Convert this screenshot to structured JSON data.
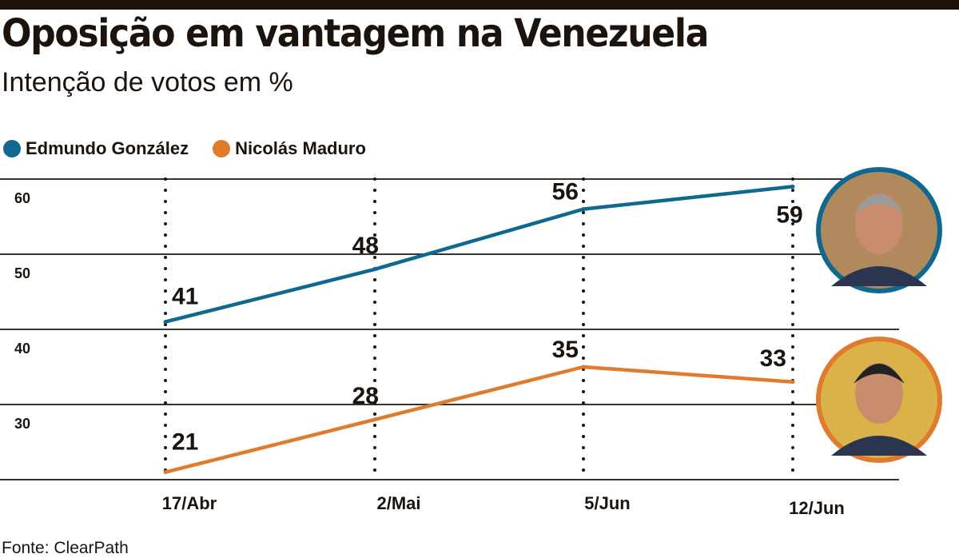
{
  "title": "Oposição em vantagem na Venezuela",
  "subtitle": "Intenção de votos em %",
  "source": "Fonte: ClearPath",
  "colors": {
    "gonzalez": "#0f6890",
    "maduro": "#e07b2e"
  },
  "chart_data": {
    "type": "line",
    "title": "Oposição em vantagem na Venezuela",
    "subtitle": "Intenção de votos em %",
    "categories": [
      "17/Abr",
      "2/Mai",
      "5/Jun",
      "12/Jun"
    ],
    "ylim": [
      20,
      60
    ],
    "yticks": [
      60,
      50,
      40,
      30
    ],
    "grid": true,
    "legend_position": "top-left",
    "series": [
      {
        "name": "Edmundo González",
        "color": "#0f6890",
        "values": [
          41,
          48,
          56,
          59
        ]
      },
      {
        "name": "Nicolás Maduro",
        "color": "#e07b2e",
        "values": [
          21,
          28,
          35,
          33
        ]
      }
    ]
  }
}
